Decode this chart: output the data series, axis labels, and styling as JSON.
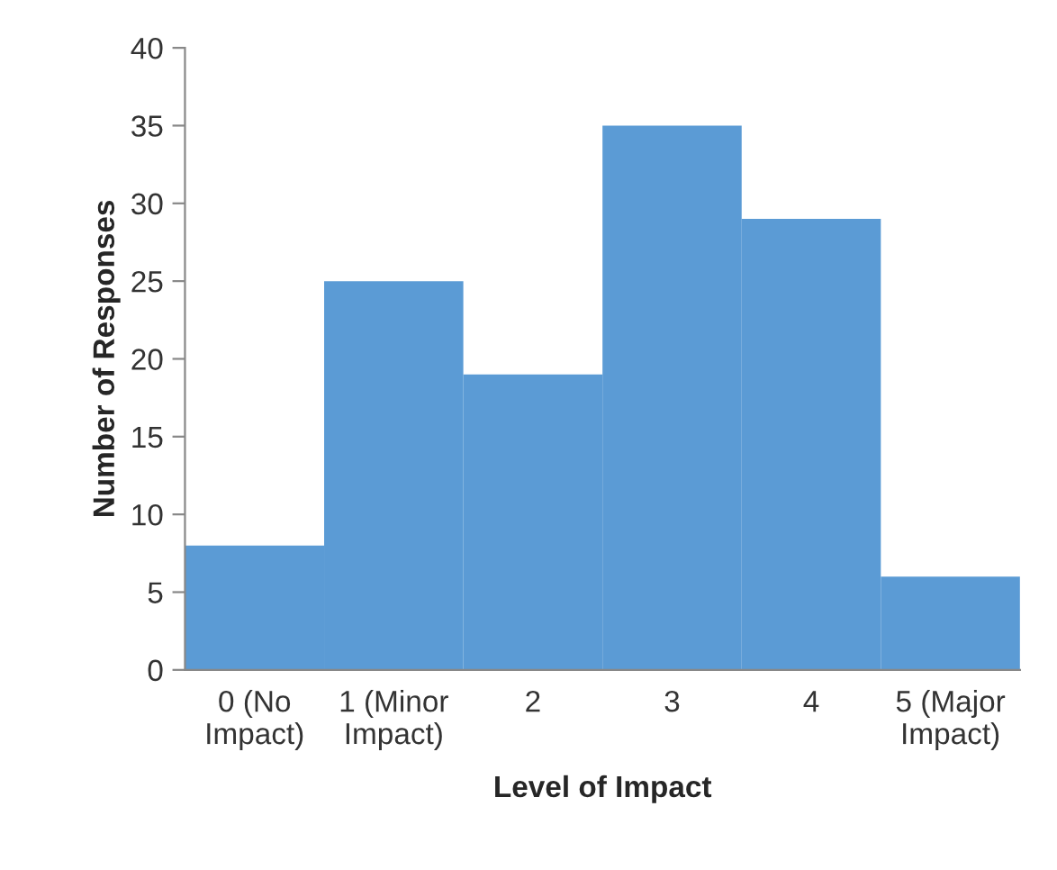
{
  "chart_data": {
    "type": "bar",
    "xlabel": "Level of Impact",
    "ylabel": "Number of Responses",
    "categories": [
      "0 (No\nImpact)",
      "1 (Minor\nImpact)",
      "2",
      "3",
      "4",
      "5 (Major\nImpact)"
    ],
    "values": [
      8,
      25,
      19,
      35,
      29,
      6
    ],
    "color": "#5b9bd5",
    "ylim": [
      0,
      40
    ],
    "yticks": [
      0,
      5,
      10,
      15,
      20,
      25,
      30,
      35,
      40
    ],
    "grid": false,
    "legend": false
  }
}
